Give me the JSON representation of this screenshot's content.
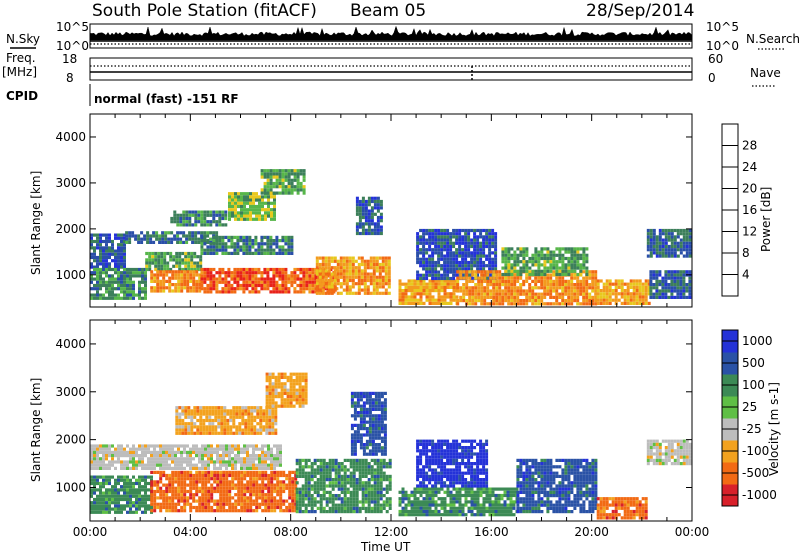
{
  "header": {
    "station": "South Pole Station (fitACF)",
    "beam": "Beam 05",
    "date": "28/Sep/2014"
  },
  "top_panel": {
    "left_label": "N.Sky",
    "right_label": "N.Search",
    "left_ticks": [
      "10^5",
      "10^0"
    ],
    "right_ticks": [
      "10^5",
      "10^0"
    ]
  },
  "freq_panel": {
    "left_label_line1": "Freq.",
    "left_label_line2": "[MHz]",
    "left_ticks": [
      "18",
      "8"
    ],
    "right_label": "Nave",
    "right_ticks": [
      "60",
      "0"
    ]
  },
  "cpid": {
    "label": "CPID",
    "mode": "normal (fast) -151 RF"
  },
  "time_axis": {
    "label": "Time UT",
    "ticks": [
      "00:00",
      "04:00",
      "08:00",
      "12:00",
      "16:00",
      "20:00",
      "00:00"
    ]
  },
  "colors": {
    "power": [
      "#2432d8",
      "#2a4fa8",
      "#3c7f5a",
      "#57b64a",
      "#e8c81e",
      "#f39b1e",
      "#f26a14",
      "#e8221a"
    ],
    "velocity": [
      "#d8202a",
      "#f26a14",
      "#f3a21e",
      "#bdbdbd",
      "#5fbf45",
      "#3c8a55",
      "#2a52a6",
      "#2432d8"
    ],
    "ground_scatter": "#bdbdbd"
  },
  "chart_data": [
    {
      "type": "heatmap",
      "title": "",
      "xlabel": "",
      "ylabel": "Slant Range [km]",
      "yticks": [
        "1000",
        "2000",
        "3000",
        "4000"
      ],
      "xlim": [
        0,
        24
      ],
      "ylim": [
        300,
        4500
      ],
      "colorbar_label": "Power [dB]",
      "colorbar_ticks": [
        "4",
        "8",
        "12",
        "16",
        "20",
        "24",
        "28"
      ],
      "color_range": [
        0,
        30
      ],
      "bands": [
        {
          "t": [
            0,
            1.4
          ],
          "r": [
            1200,
            1900
          ],
          "v": 6
        },
        {
          "t": [
            0,
            2.2
          ],
          "r": [
            500,
            1150
          ],
          "v": 10
        },
        {
          "t": [
            1.4,
            5.0
          ],
          "r": [
            1700,
            1950
          ],
          "v": 8
        },
        {
          "t": [
            2.2,
            4.4
          ],
          "r": [
            1100,
            1500
          ],
          "v": 12
        },
        {
          "t": [
            2.4,
            4.4
          ],
          "r": [
            650,
            1100
          ],
          "v": 22
        },
        {
          "t": [
            3.2,
            5.4
          ],
          "r": [
            2100,
            2400
          ],
          "v": 10
        },
        {
          "t": [
            4.4,
            8.0
          ],
          "r": [
            1450,
            1850
          ],
          "v": 9
        },
        {
          "t": [
            4.4,
            9.8
          ],
          "r": [
            600,
            1150
          ],
          "v": 25
        },
        {
          "t": [
            5.5,
            7.4
          ],
          "r": [
            2200,
            2800
          ],
          "v": 14
        },
        {
          "t": [
            6.8,
            8.5
          ],
          "r": [
            2800,
            3300
          ],
          "v": 12
        },
        {
          "t": [
            9.0,
            11.9
          ],
          "r": [
            600,
            1400
          ],
          "v": 21
        },
        {
          "t": [
            10.6,
            11.6
          ],
          "r": [
            1900,
            2700
          ],
          "v": 6
        },
        {
          "t": [
            12.3,
            14.6
          ],
          "r": [
            350,
            900
          ],
          "v": 20
        },
        {
          "t": [
            13.0,
            16.2
          ],
          "r": [
            900,
            2000
          ],
          "v": 5
        },
        {
          "t": [
            14.6,
            20.2
          ],
          "r": [
            400,
            1100
          ],
          "v": 22
        },
        {
          "t": [
            16.4,
            19.8
          ],
          "r": [
            1000,
            1600
          ],
          "v": 12
        },
        {
          "t": [
            20.2,
            22.3
          ],
          "r": [
            350,
            900
          ],
          "v": 20
        },
        {
          "t": [
            22.2,
            24
          ],
          "r": [
            1400,
            2000
          ],
          "v": 7
        },
        {
          "t": [
            22.3,
            24
          ],
          "r": [
            500,
            1100
          ],
          "v": 6
        }
      ]
    },
    {
      "type": "heatmap",
      "title": "",
      "xlabel": "Time UT",
      "ylabel": "Slant Range [km]",
      "yticks": [
        "1000",
        "2000",
        "3000",
        "4000"
      ],
      "xlim": [
        0,
        24
      ],
      "ylim": [
        300,
        4500
      ],
      "colorbar_label": "Velocity [m s-1]",
      "colorbar_ticks": [
        "1000",
        "500",
        "100",
        "25",
        "-25",
        "-100",
        "-500",
        "-1000"
      ],
      "color_classes": [
        "-1000",
        "-500",
        "-100",
        "-25",
        "25",
        "100",
        "500",
        "1000"
      ],
      "bands": [
        {
          "t": [
            0,
            7.6
          ],
          "r": [
            1400,
            1900
          ],
          "c": 3
        },
        {
          "t": [
            0,
            2.4
          ],
          "r": [
            500,
            1250
          ],
          "c": 5
        },
        {
          "t": [
            2.4,
            8.2
          ],
          "r": [
            500,
            1350
          ],
          "c": 1
        },
        {
          "t": [
            3.4,
            7.4
          ],
          "r": [
            2100,
            2700
          ],
          "c": 2
        },
        {
          "t": [
            7.0,
            8.6
          ],
          "r": [
            2700,
            3400
          ],
          "c": 2
        },
        {
          "t": [
            8.2,
            12.0
          ],
          "r": [
            500,
            1600
          ],
          "c": 5
        },
        {
          "t": [
            10.4,
            11.8
          ],
          "r": [
            1700,
            3000
          ],
          "c": 6
        },
        {
          "t": [
            12.3,
            17.0
          ],
          "r": [
            400,
            1000
          ],
          "c": 5
        },
        {
          "t": [
            13.0,
            15.8
          ],
          "r": [
            1000,
            2000
          ],
          "c": 7
        },
        {
          "t": [
            17.0,
            20.2
          ],
          "r": [
            500,
            1600
          ],
          "c": 6
        },
        {
          "t": [
            20.2,
            22.2
          ],
          "r": [
            350,
            800
          ],
          "c": 1
        },
        {
          "t": [
            22.2,
            24
          ],
          "r": [
            1500,
            2000
          ],
          "c": 3
        }
      ]
    }
  ]
}
